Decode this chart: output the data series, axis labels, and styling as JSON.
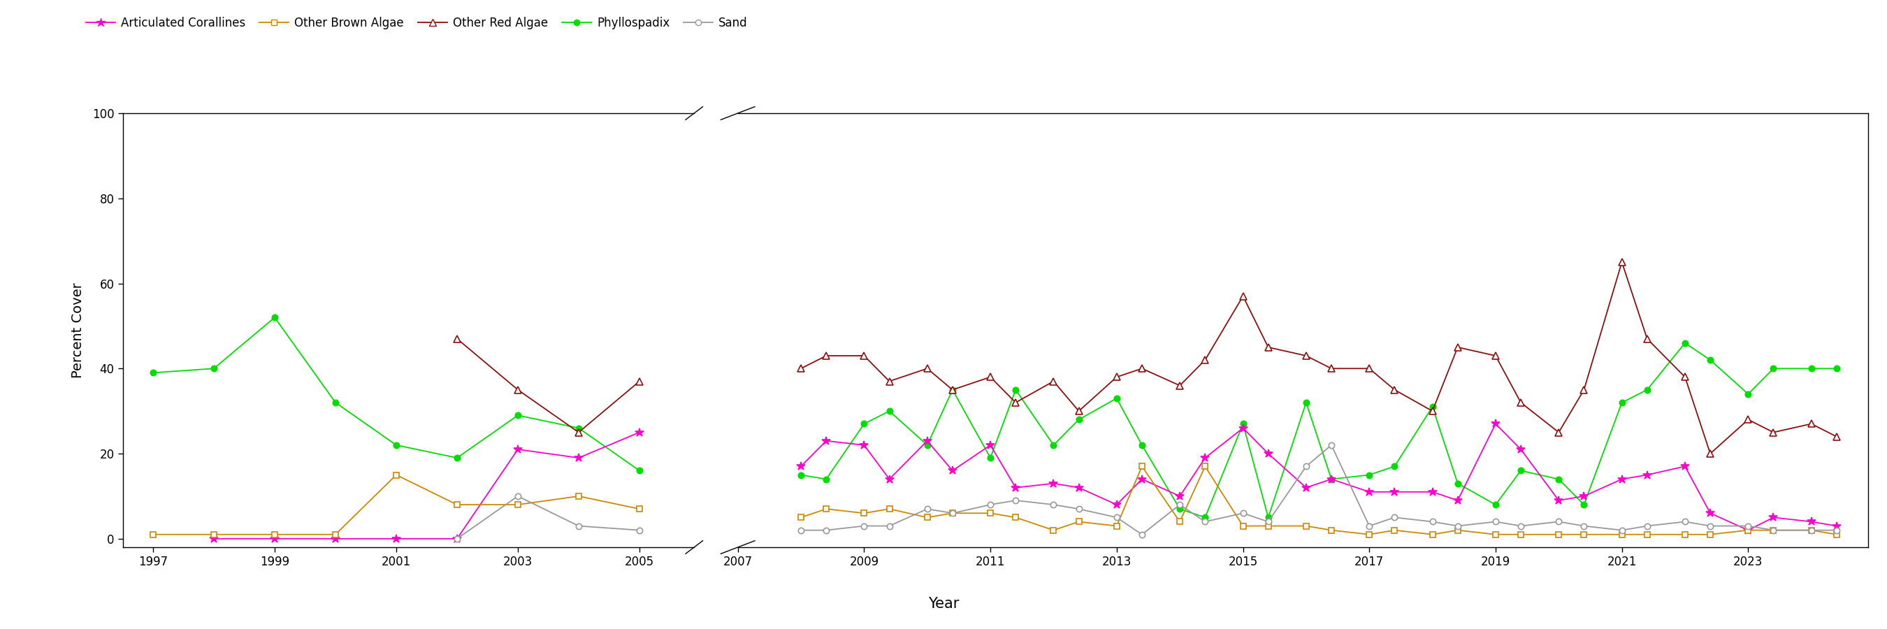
{
  "xlabel": "Year",
  "ylabel": "Percent Cover",
  "ylim": [
    0,
    100
  ],
  "yticks": [
    0,
    20,
    40,
    60,
    80,
    100
  ],
  "xticks_p1": [
    1997,
    1999,
    2001,
    2003,
    2005
  ],
  "xticks_p2": [
    2007,
    2009,
    2011,
    2013,
    2015,
    2017,
    2019,
    2021,
    2023
  ],
  "c_art": "#ff00cc",
  "c_brn": "#cc8800",
  "c_red": "#8B1010",
  "c_phy": "#00dd00",
  "c_snd": "#999999",
  "lw": 1.3,
  "period1": {
    "Phyllospadix": {
      "years": [
        1997,
        1998,
        1999,
        2000,
        2001,
        2002,
        2003,
        2004,
        2005
      ],
      "values": [
        39,
        40,
        52,
        32,
        22,
        19,
        29,
        26,
        16
      ]
    },
    "Articulated Corallines": {
      "years": [
        1998,
        1999,
        2000,
        2001,
        2002,
        2003,
        2004,
        2005
      ],
      "values": [
        0,
        0,
        0,
        0,
        0,
        21,
        19,
        25
      ]
    },
    "Other Brown Algae": {
      "years": [
        1997,
        1998,
        1999,
        2000,
        2001,
        2002,
        2003,
        2004,
        2005
      ],
      "values": [
        1,
        1,
        1,
        1,
        15,
        8,
        8,
        10,
        7
      ]
    },
    "Other Red Algae": {
      "years": [
        2002,
        2003,
        2004,
        2005
      ],
      "values": [
        47,
        35,
        25,
        37
      ]
    },
    "Sand": {
      "years": [
        2002,
        2003,
        2004,
        2005
      ],
      "values": [
        0,
        10,
        3,
        2
      ]
    }
  },
  "period2": {
    "x": [
      2008,
      2008.4,
      2009,
      2009.4,
      2010,
      2010.4,
      2011,
      2011.4,
      2012,
      2012.4,
      2013,
      2013.4,
      2014,
      2014.4,
      2015,
      2015.4,
      2016,
      2016.4,
      2017,
      2017.4,
      2018,
      2018.4,
      2019,
      2019.4,
      2020,
      2020.4,
      2021,
      2021.4,
      2022,
      2022.4,
      2023,
      2023.4,
      2024,
      2024.4
    ],
    "Phyllospadix": [
      15,
      14,
      27,
      30,
      22,
      35,
      19,
      35,
      22,
      28,
      33,
      22,
      7,
      5,
      27,
      5,
      32,
      14,
      15,
      17,
      31,
      13,
      8,
      16,
      14,
      8,
      32,
      35,
      46,
      42,
      34,
      40,
      40,
      40
    ],
    "Articulated Corallines": [
      17,
      23,
      22,
      14,
      23,
      16,
      22,
      12,
      13,
      12,
      8,
      14,
      10,
      19,
      26,
      20,
      12,
      14,
      11,
      11,
      11,
      9,
      27,
      21,
      9,
      10,
      14,
      15,
      17,
      6,
      2,
      5,
      4,
      3
    ],
    "Other Brown Algae": [
      5,
      7,
      6,
      7,
      5,
      6,
      6,
      5,
      2,
      4,
      3,
      17,
      4,
      17,
      3,
      3,
      3,
      2,
      1,
      2,
      1,
      2,
      1,
      1,
      1,
      1,
      1,
      1,
      1,
      1,
      2,
      2,
      2,
      1
    ],
    "Other Red Algae": [
      40,
      43,
      43,
      37,
      40,
      35,
      38,
      32,
      37,
      30,
      38,
      40,
      36,
      42,
      57,
      45,
      43,
      40,
      40,
      35,
      30,
      45,
      43,
      32,
      25,
      35,
      65,
      47,
      38,
      20,
      28,
      25,
      27,
      24
    ],
    "Sand": [
      2,
      2,
      3,
      3,
      7,
      6,
      8,
      9,
      8,
      7,
      5,
      1,
      8,
      4,
      6,
      4,
      17,
      22,
      3,
      5,
      4,
      3,
      4,
      3,
      4,
      3,
      2,
      3,
      4,
      3,
      3,
      2,
      2,
      2
    ]
  }
}
